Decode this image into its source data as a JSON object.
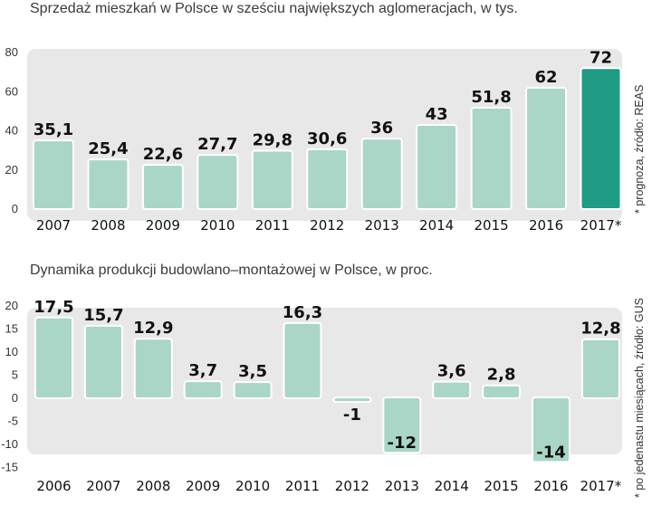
{
  "chart_data": [
    {
      "type": "bar",
      "title": "Sprzedaż mieszkań w Polsce w sześciu największych aglomeracjach, w tys.",
      "source": "* prognoza, źródło: REAS",
      "categories": [
        "2007",
        "2008",
        "2009",
        "2010",
        "2011",
        "2012",
        "2013",
        "2014",
        "2015",
        "2016",
        "2017*"
      ],
      "values": [
        35.1,
        25.4,
        22.6,
        27.7,
        29.8,
        30.6,
        36,
        43,
        51.8,
        62,
        72
      ],
      "value_labels": [
        "35,1",
        "25,4",
        "22,6",
        "27,7",
        "29,8",
        "30,6",
        "36",
        "43",
        "51,8",
        "62",
        "72"
      ],
      "highlight_index": 10,
      "ylim": [
        0,
        80
      ],
      "yticks": [
        "0",
        "20",
        "40",
        "60",
        "80"
      ],
      "xlabel": "",
      "ylabel": "",
      "colors": {
        "bar": "#a9d6c7",
        "highlight": "#1f9c84",
        "frame": "#e8e8e8"
      }
    },
    {
      "type": "bar",
      "title": "Dynamika produkcji budowlano–montażowej w Polsce, w proc.",
      "source": "* po jedenastu miesiącach, źródło: GUS",
      "categories": [
        "2006",
        "2007",
        "2008",
        "2009",
        "2010",
        "2011",
        "2012",
        "2013",
        "2014",
        "2015",
        "2016",
        "2017*"
      ],
      "values": [
        17.5,
        15.7,
        12.9,
        3.7,
        3.5,
        16.3,
        -1,
        -12,
        3.6,
        2.8,
        -14,
        12.8
      ],
      "value_labels": [
        "17,5",
        "15,7",
        "12,9",
        "3,7",
        "3,5",
        "16,3",
        "-1",
        "-12",
        "3,6",
        "2,8",
        "-14",
        "12,8"
      ],
      "ylim": [
        -15,
        20
      ],
      "yticks": [
        "-15",
        "-10",
        "-5",
        "0",
        "5",
        "10",
        "15",
        "20"
      ],
      "xlabel": "",
      "ylabel": "",
      "colors": {
        "bar": "#a9d6c7",
        "frame": "#e8e8e8"
      }
    }
  ]
}
